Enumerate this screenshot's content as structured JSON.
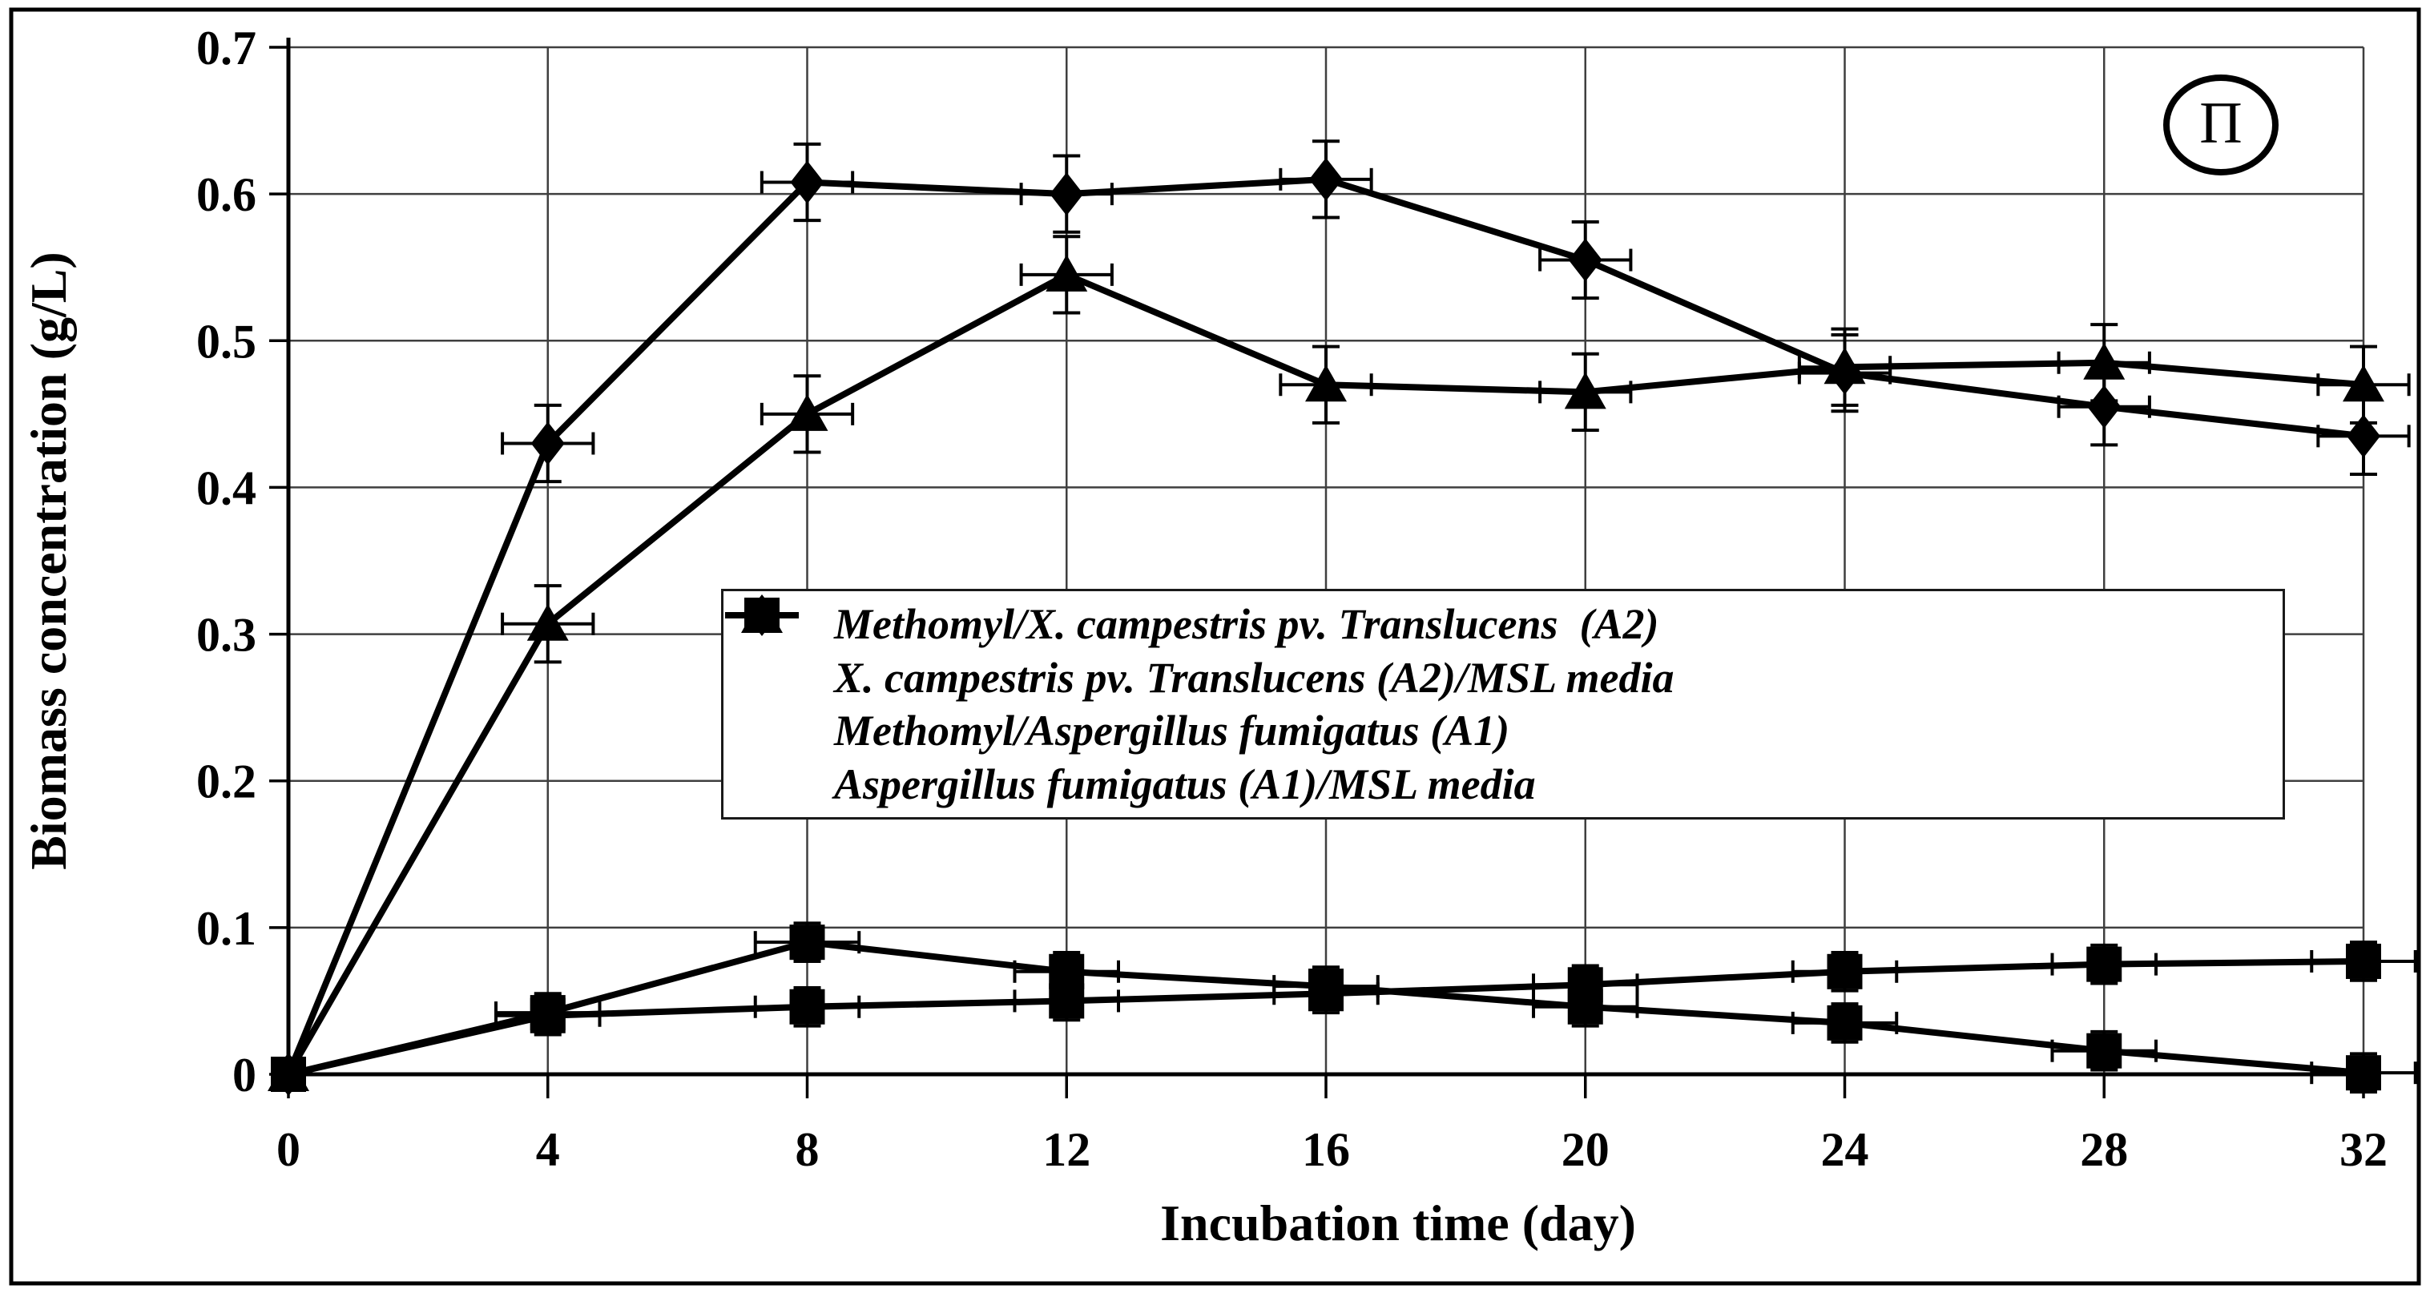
{
  "badge": {
    "label": "Π"
  },
  "chart_data": {
    "type": "line",
    "title": "",
    "xlabel": "Incubation time (day)",
    "ylabel": "Biomass concentration (g/L)",
    "xlim": [
      0,
      32
    ],
    "ylim": [
      0,
      0.7
    ],
    "x_ticks": [
      0,
      4,
      8,
      12,
      16,
      20,
      24,
      28,
      32
    ],
    "y_ticks": [
      "0",
      "0.1",
      "0.2",
      "0.3",
      "0.4",
      "0.5",
      "0.6",
      "0.7"
    ],
    "grid": true,
    "legend_position": "center",
    "x": [
      0,
      4,
      8,
      12,
      16,
      20,
      24,
      28,
      32
    ],
    "series": [
      {
        "name": "Methomyl/X. campestris pv. Translucens  (A2)",
        "marker": "diamond",
        "values": [
          0,
          0.43,
          0.608,
          0.6,
          0.61,
          0.555,
          0.478,
          0.455,
          0.435
        ],
        "err_y": 0.026,
        "err_x": 0.7
      },
      {
        "name": "X. campestris pv. Translucens (A2)/MSL media",
        "marker": "square",
        "values": [
          0,
          0.042,
          0.09,
          0.07,
          0.06,
          0.046,
          0.035,
          0.016,
          0.001
        ],
        "err_y": 0.013,
        "err_x": 0.8
      },
      {
        "name": "Methomyl/Aspergillus fumigatus (A1)",
        "marker": "triangle",
        "values": [
          0,
          0.307,
          0.45,
          0.545,
          0.47,
          0.465,
          0.482,
          0.485,
          0.47
        ],
        "err_y": 0.026,
        "err_x": 0.7
      },
      {
        "name": "Aspergillus fumigatus (A1)/MSL media",
        "marker": "square",
        "values": [
          0,
          0.04,
          0.046,
          0.05,
          0.055,
          0.061,
          0.07,
          0.075,
          0.077
        ],
        "err_y": 0.013,
        "err_x": 0.8
      }
    ]
  }
}
